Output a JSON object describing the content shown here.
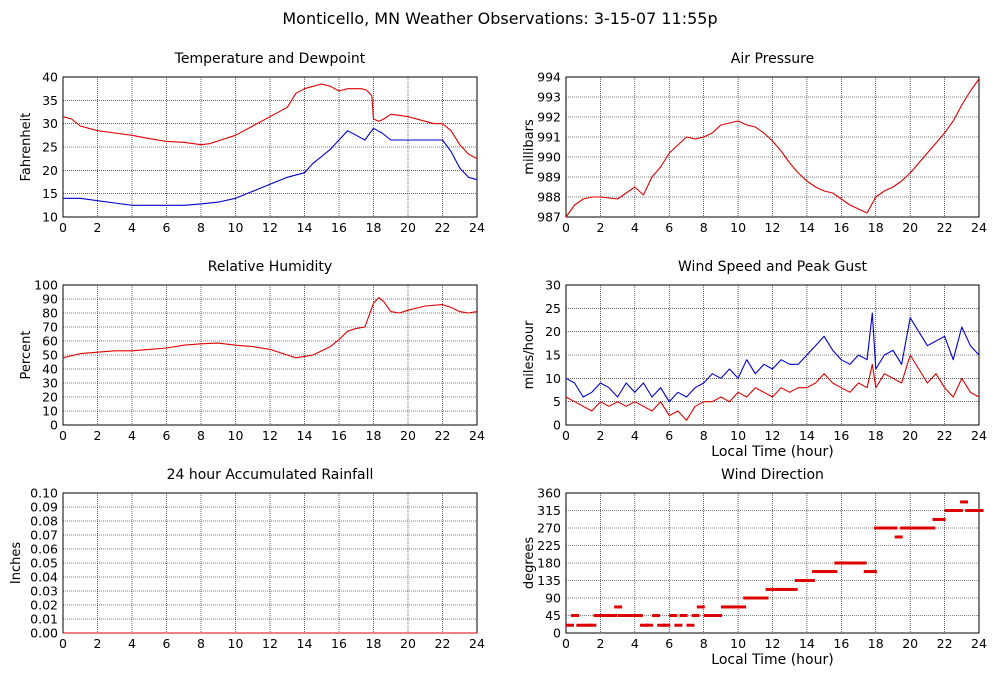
{
  "page_title": "Monticello, MN Weather Observations: 3-15-07 11:55p",
  "colors": {
    "red": "#dd0000",
    "blue": "#0000cc",
    "grid": "#000000",
    "frame": "#000000"
  },
  "chart_data": [
    {
      "type": "line",
      "title": "Temperature and Dewpoint",
      "xlabel": "",
      "ylabel": "Fahrenheit",
      "xlim": [
        0,
        24
      ],
      "ylim": [
        10,
        40
      ],
      "xticks": [
        0,
        2,
        4,
        6,
        8,
        10,
        12,
        14,
        16,
        18,
        20,
        22,
        24
      ],
      "yticks": [
        10,
        15,
        20,
        25,
        30,
        35,
        40
      ],
      "grid": true,
      "series": [
        {
          "color": "#dd0000",
          "x": [
            0,
            0.5,
            1,
            2,
            3,
            4,
            5,
            6,
            7,
            8,
            8.5,
            9,
            10,
            11,
            12,
            13,
            13.5,
            14,
            14.5,
            15,
            15.5,
            16,
            16.5,
            17,
            17.3,
            17.6,
            17.9,
            18,
            18.3,
            18.6,
            19,
            19.5,
            20,
            21,
            21.5,
            22,
            22.5,
            23,
            23.5,
            24
          ],
          "y": [
            31.5,
            31,
            29.5,
            28.5,
            28,
            27.5,
            26.8,
            26.2,
            26,
            25.5,
            25.7,
            26.3,
            27.5,
            29.5,
            31.5,
            33.5,
            36.5,
            37.5,
            38,
            38.5,
            38,
            37,
            37.5,
            37.5,
            37.5,
            37.2,
            36,
            31,
            30.5,
            31,
            32,
            31.8,
            31.5,
            30.5,
            30,
            30,
            28.5,
            25.5,
            23.5,
            22.5
          ]
        },
        {
          "color": "#0000cc",
          "x": [
            0,
            1,
            2,
            3,
            4,
            5,
            6,
            7,
            8,
            9,
            10,
            11,
            12,
            13,
            14,
            14.5,
            15,
            15.5,
            16,
            16.5,
            17,
            17.5,
            18,
            18.5,
            19,
            20,
            21,
            22,
            22.5,
            23,
            23.5,
            24
          ],
          "y": [
            14,
            14,
            13.5,
            13,
            12.5,
            12.5,
            12.5,
            12.5,
            12.8,
            13.2,
            14,
            15.5,
            17,
            18.5,
            19.5,
            21.5,
            23,
            24.5,
            26.5,
            28.5,
            27.5,
            26.5,
            29,
            28,
            26.5,
            26.5,
            26.5,
            26.5,
            24,
            20.5,
            18.5,
            18
          ]
        }
      ]
    },
    {
      "type": "line",
      "title": "Air Pressure",
      "xlabel": "",
      "ylabel": "millibars",
      "xlim": [
        0,
        24
      ],
      "ylim": [
        987,
        994
      ],
      "xticks": [
        0,
        2,
        4,
        6,
        8,
        10,
        12,
        14,
        16,
        18,
        20,
        22,
        24
      ],
      "yticks": [
        987,
        988,
        989,
        990,
        991,
        992,
        993,
        994
      ],
      "grid": true,
      "series": [
        {
          "color": "#dd0000",
          "x": [
            0,
            0.5,
            1,
            1.5,
            2,
            3,
            3.5,
            4,
            4.5,
            5,
            5.5,
            6,
            6.5,
            7,
            7.5,
            8,
            8.5,
            9,
            9.5,
            10,
            10.5,
            11,
            11.5,
            12,
            12.5,
            13,
            13.5,
            14,
            14.5,
            15,
            15.5,
            16,
            16.5,
            17,
            17.5,
            18,
            18.5,
            19,
            19.5,
            20,
            20.5,
            21,
            21.5,
            22,
            22.5,
            23,
            23.5,
            24
          ],
          "y": [
            987,
            987.6,
            987.9,
            988,
            988,
            987.9,
            988.2,
            988.5,
            988.1,
            989,
            989.5,
            990.2,
            990.6,
            991,
            990.9,
            991,
            991.2,
            991.6,
            991.7,
            991.8,
            991.6,
            991.5,
            991.2,
            990.8,
            990.3,
            989.7,
            989.2,
            988.8,
            988.5,
            988.3,
            988.2,
            987.9,
            987.6,
            987.4,
            987.2,
            988,
            988.3,
            988.5,
            988.8,
            989.2,
            989.7,
            990.2,
            990.7,
            991.2,
            991.8,
            992.6,
            993.3,
            993.9
          ]
        }
      ]
    },
    {
      "type": "line",
      "title": "Relative Humidity",
      "xlabel": "",
      "ylabel": "Percent",
      "xlim": [
        0,
        24
      ],
      "ylim": [
        0,
        100
      ],
      "xticks": [
        0,
        2,
        4,
        6,
        8,
        10,
        12,
        14,
        16,
        18,
        20,
        22,
        24
      ],
      "yticks": [
        0,
        10,
        20,
        30,
        40,
        50,
        60,
        70,
        80,
        90,
        100
      ],
      "grid": true,
      "series": [
        {
          "color": "#dd0000",
          "x": [
            0,
            1,
            2,
            3,
            4,
            5,
            6,
            7,
            8,
            9,
            10,
            11,
            12,
            13,
            13.5,
            14,
            14.5,
            15,
            15.5,
            16,
            16.5,
            17,
            17.5,
            18,
            18.3,
            18.6,
            19,
            19.5,
            20,
            21,
            22,
            22.5,
            23,
            23.5,
            24
          ],
          "y": [
            48,
            51,
            52,
            53,
            53,
            54,
            55,
            57,
            58,
            58.5,
            57,
            56,
            54,
            50,
            48,
            49,
            50,
            53,
            56,
            61,
            67,
            69,
            70,
            87,
            91,
            88,
            81,
            80,
            82,
            85,
            86,
            84,
            81,
            80,
            81
          ]
        }
      ]
    },
    {
      "type": "line",
      "title": "Wind Speed and Peak Gust",
      "xlabel": "Local Time (hour)",
      "ylabel": "miles/hour",
      "xlim": [
        0,
        24
      ],
      "ylim": [
        0,
        30
      ],
      "xticks": [
        0,
        2,
        4,
        6,
        8,
        10,
        12,
        14,
        16,
        18,
        20,
        22,
        24
      ],
      "yticks": [
        0,
        5,
        10,
        15,
        20,
        25,
        30
      ],
      "grid": true,
      "series": [
        {
          "color": "#0000cc",
          "x": [
            0,
            0.5,
            1,
            1.5,
            2,
            2.5,
            3,
            3.5,
            4,
            4.5,
            5,
            5.5,
            6,
            6.5,
            7,
            7.5,
            8,
            8.5,
            9,
            9.5,
            10,
            10.5,
            11,
            11.5,
            12,
            12.5,
            13,
            13.5,
            14,
            14.5,
            15,
            15.5,
            16,
            16.5,
            17,
            17.5,
            17.8,
            18,
            18.5,
            19,
            19.5,
            20,
            20.5,
            21,
            21.5,
            22,
            22.5,
            23,
            23.5,
            24
          ],
          "y": [
            10,
            9,
            6,
            7,
            9,
            8,
            6,
            9,
            7,
            9,
            6,
            8,
            5,
            7,
            6,
            8,
            9,
            11,
            10,
            12,
            10,
            14,
            11,
            13,
            12,
            14,
            13,
            13,
            15,
            17,
            19,
            16,
            14,
            13,
            15,
            14,
            24,
            12,
            15,
            16,
            13,
            23,
            20,
            17,
            18,
            19,
            14,
            21,
            17,
            15
          ]
        },
        {
          "color": "#dd0000",
          "x": [
            0,
            0.5,
            1,
            1.5,
            2,
            2.5,
            3,
            3.5,
            4,
            4.5,
            5,
            5.5,
            6,
            6.5,
            7,
            7.5,
            8,
            8.5,
            9,
            9.5,
            10,
            10.5,
            11,
            11.5,
            12,
            12.5,
            13,
            13.5,
            14,
            14.5,
            15,
            15.5,
            16,
            16.5,
            17,
            17.5,
            17.8,
            18,
            18.5,
            19,
            19.5,
            20,
            20.5,
            21,
            21.5,
            22,
            22.5,
            23,
            23.5,
            24
          ],
          "y": [
            6,
            5,
            4,
            3,
            5,
            4,
            5,
            4,
            5,
            4,
            3,
            5,
            2,
            3,
            1,
            4,
            5,
            5,
            6,
            5,
            7,
            6,
            8,
            7,
            6,
            8,
            7,
            8,
            8,
            9,
            11,
            9,
            8,
            7,
            9,
            8,
            13,
            8,
            11,
            10,
            9,
            15,
            12,
            9,
            11,
            8,
            6,
            10,
            7,
            6
          ]
        }
      ]
    },
    {
      "type": "area",
      "title": "24 hour Accumulated Rainfall",
      "xlabel": "",
      "ylabel": "Inches",
      "xlim": [
        0,
        24
      ],
      "ylim": [
        0,
        0.1
      ],
      "xticks": [
        0,
        2,
        4,
        6,
        8,
        10,
        12,
        14,
        16,
        18,
        20,
        22,
        24
      ],
      "yticks": [
        "0.00",
        "0.01",
        "0.02",
        "0.03",
        "0.04",
        "0.05",
        "0.06",
        "0.07",
        "0.08",
        "0.09",
        "0.10"
      ],
      "grid": true,
      "series": [
        {
          "color": "#dd0000",
          "x": [
            0,
            24
          ],
          "y": [
            0,
            0
          ]
        }
      ]
    },
    {
      "type": "scatter",
      "title": "Wind Direction",
      "xlabel": "Local Time (hour)",
      "ylabel": "degrees",
      "xlim": [
        0,
        24
      ],
      "ylim": [
        0,
        360
      ],
      "xticks": [
        0,
        2,
        4,
        6,
        8,
        10,
        12,
        14,
        16,
        18,
        20,
        22,
        24
      ],
      "yticks": [
        0,
        45,
        90,
        135,
        180,
        225,
        270,
        315,
        360
      ],
      "grid": true,
      "series": [
        {
          "color": "#dd0000",
          "x": [
            0,
            0.3,
            0.6,
            1,
            1.3,
            1.6,
            2,
            2.2,
            2.5,
            2.8,
            3,
            3.3,
            3.6,
            4,
            4.3,
            4.6,
            5,
            5.3,
            5.6,
            6,
            6.3,
            6.6,
            7,
            7.3,
            7.6,
            8,
            8.3,
            8.6,
            9,
            9.3,
            9.6,
            10,
            10.3,
            10.6,
            11,
            11.3,
            11.6,
            12,
            12.3,
            12.6,
            13,
            13.3,
            13.6,
            14,
            14.3,
            14.6,
            15,
            15.3,
            15.6,
            16,
            16.3,
            16.6,
            17,
            17.3,
            17.6,
            17.9,
            18.2,
            18.5,
            18.8,
            19.1,
            19.4,
            19.7,
            20,
            20.3,
            20.6,
            21,
            21.3,
            21.6,
            22,
            22.3,
            22.6,
            22.9,
            23.2,
            23.5,
            23.8
          ],
          "y": [
            20,
            45,
            20,
            20,
            20,
            45,
            45,
            45,
            45,
            67,
            45,
            45,
            45,
            45,
            20,
            20,
            45,
            20,
            20,
            45,
            20,
            45,
            20,
            45,
            67,
            45,
            45,
            45,
            67,
            67,
            67,
            67,
            90,
            90,
            90,
            90,
            112,
            112,
            112,
            112,
            112,
            135,
            135,
            135,
            158,
            158,
            158,
            158,
            180,
            180,
            180,
            180,
            180,
            158,
            158,
            270,
            270,
            270,
            270,
            247,
            270,
            270,
            270,
            270,
            270,
            270,
            292,
            292,
            315,
            315,
            315,
            337,
            315,
            315,
            315
          ]
        }
      ]
    }
  ]
}
